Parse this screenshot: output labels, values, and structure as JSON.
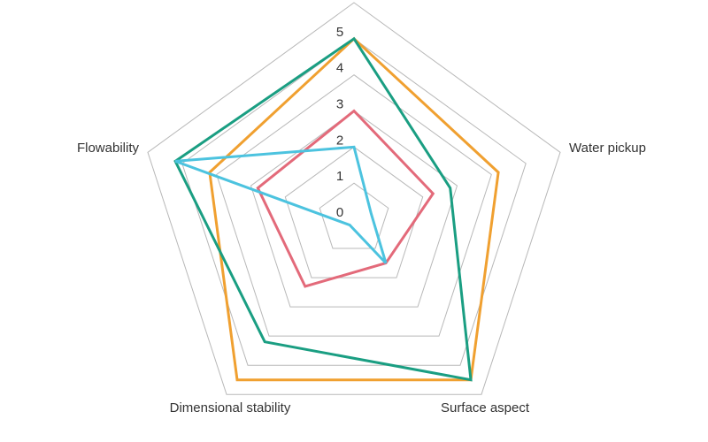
{
  "chart_data": {
    "type": "radar",
    "axes": [
      "Surface aspect",
      "Dimensional stability",
      "Flowability",
      "Water pickup"
    ],
    "axes_order_clockwise_from_top": [
      "(top, unlabeled)",
      "Water pickup",
      "Surface aspect",
      "Dimensional stability",
      "Flowability"
    ],
    "rlim": [
      0,
      6
    ],
    "ticks": [
      "0",
      "1",
      "2",
      "3",
      "4",
      "5",
      "6"
    ],
    "grid": true,
    "legend": "none",
    "series": [
      {
        "color": "#f0a030",
        "values": [
          5,
          4.2,
          5.5,
          5.5,
          4.2
        ]
      },
      {
        "color": "#1a9e82",
        "values": [
          5,
          2.8,
          5.5,
          4.2,
          5.2
        ]
      },
      {
        "color": "#e36a7a",
        "values": [
          3,
          2.3,
          1.5,
          2.3,
          2.8
        ]
      },
      {
        "color": "#4cc3df",
        "values": [
          2,
          0.5,
          1.5,
          0.2,
          5.2
        ]
      }
    ]
  }
}
